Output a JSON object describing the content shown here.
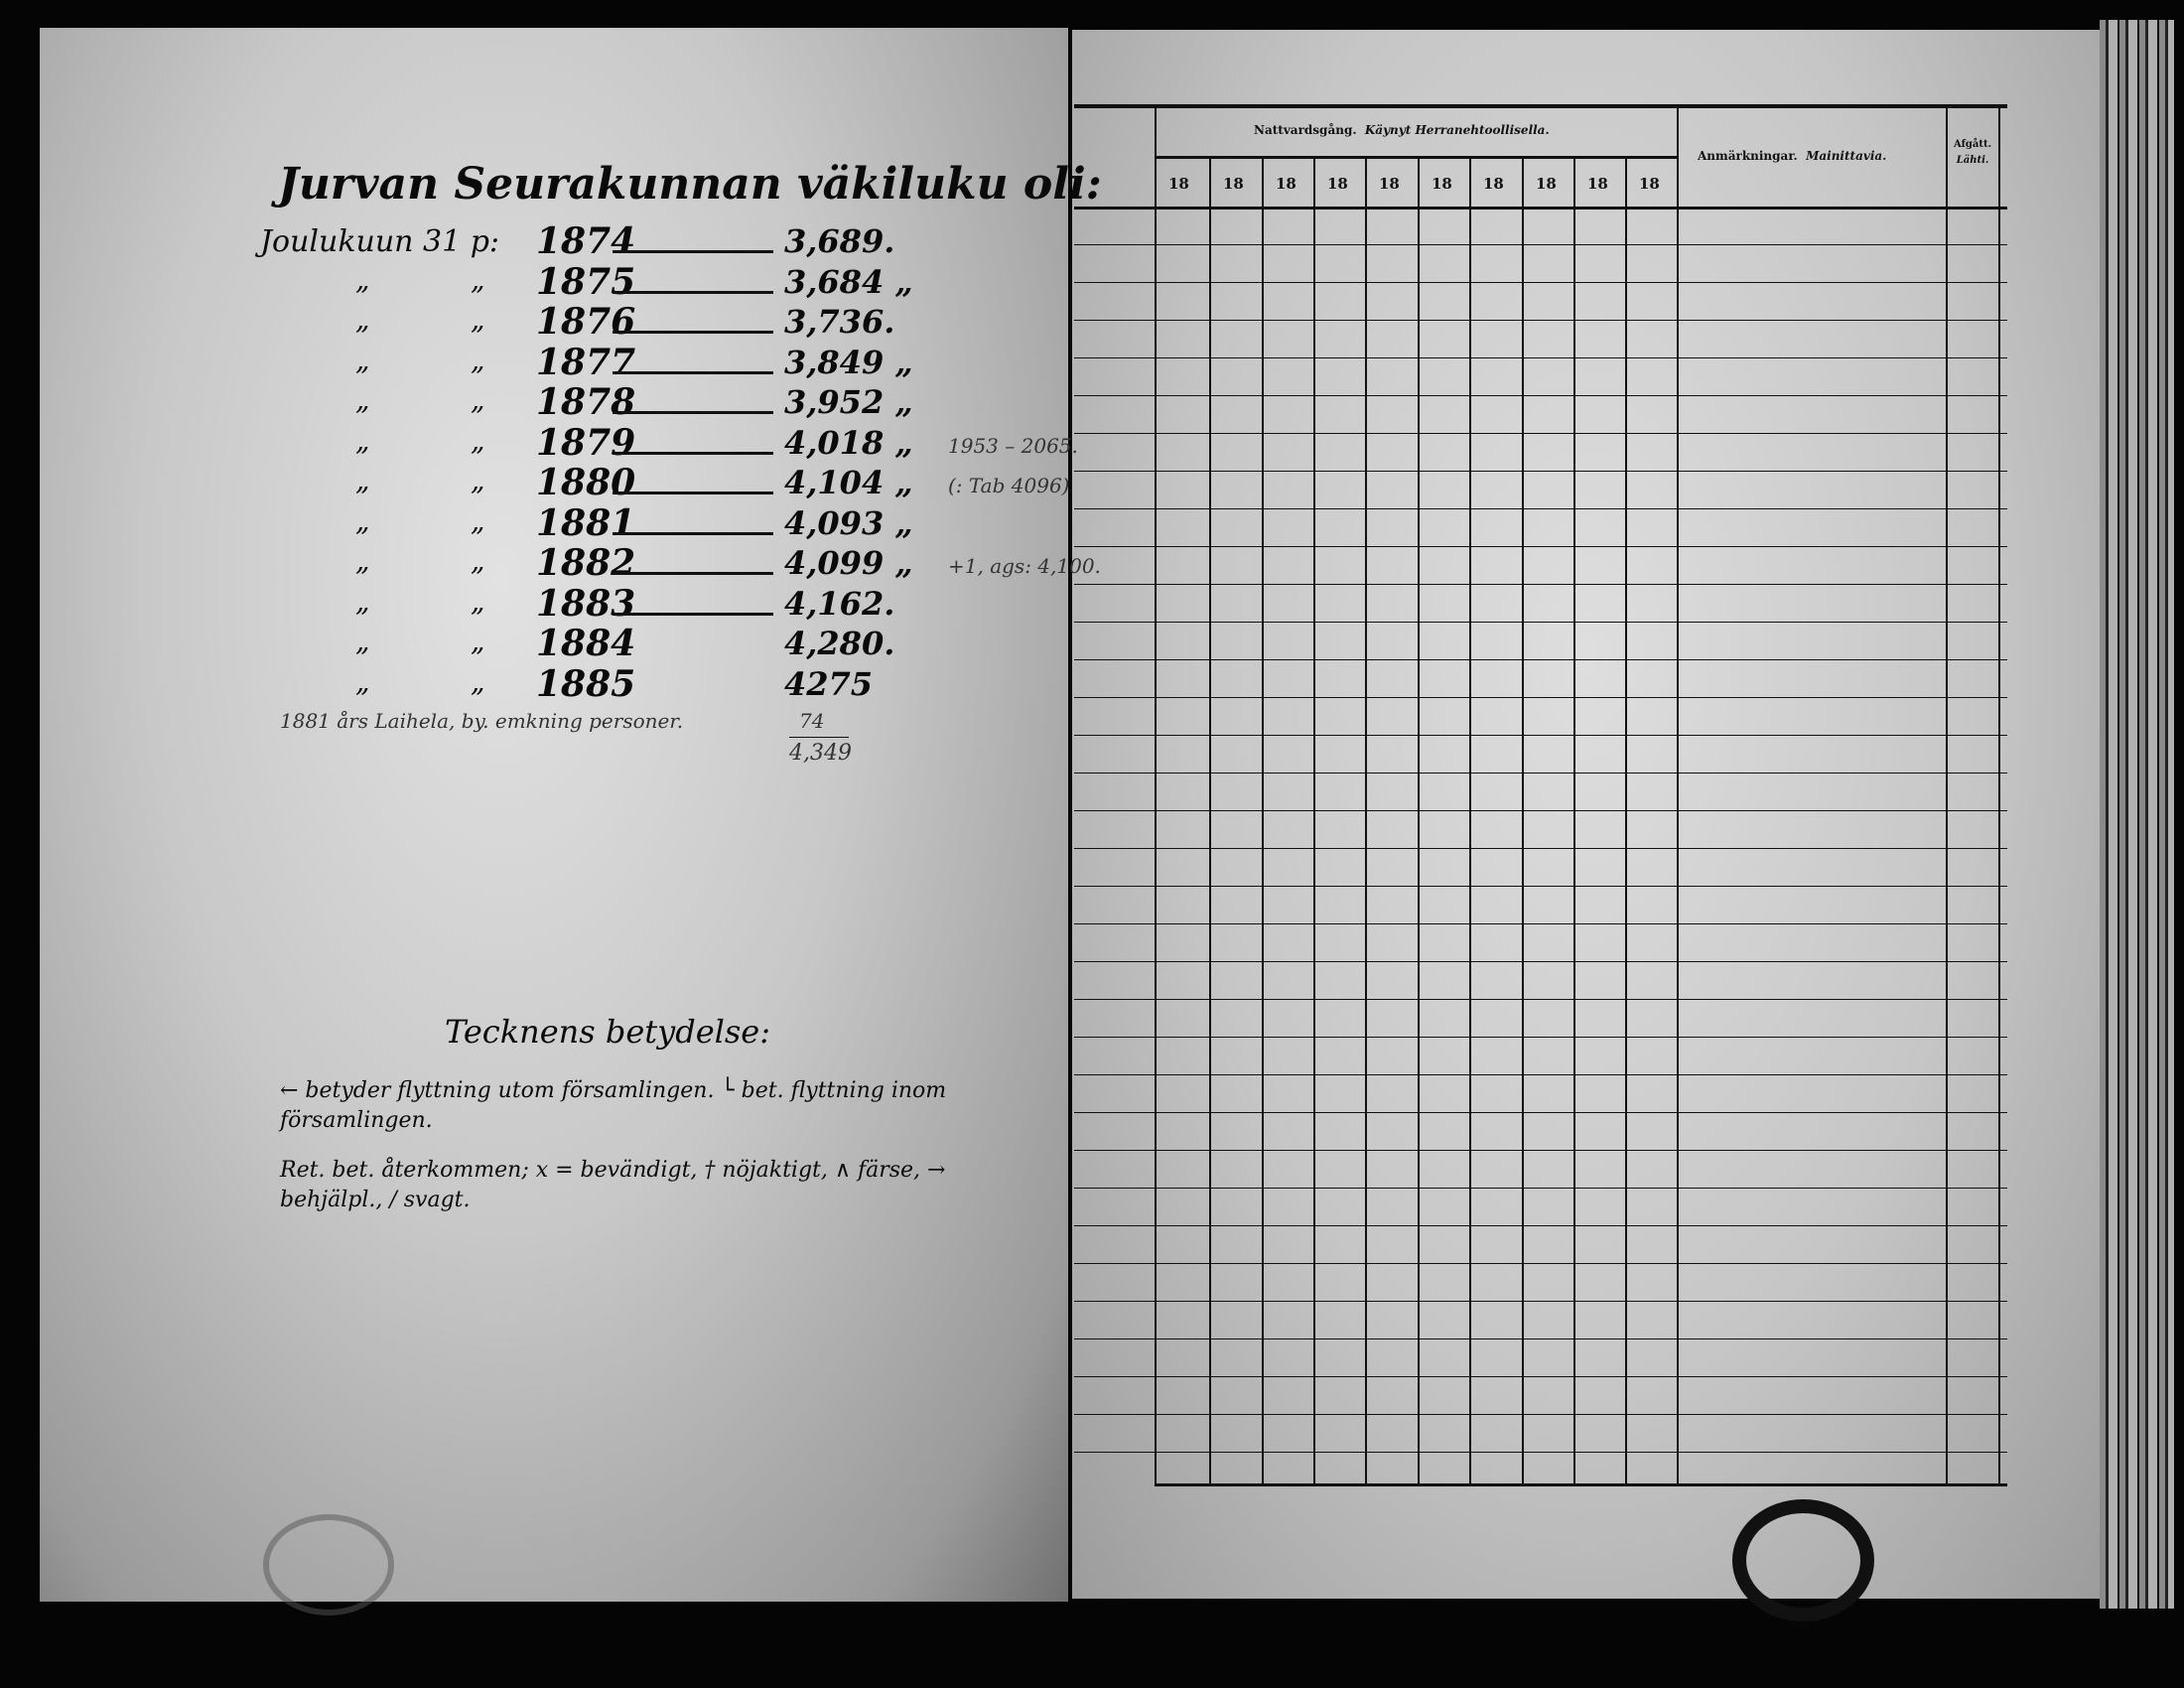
{
  "left_page": {
    "title": "Jurvan Seurakunnan väkiluku oli:",
    "first_prefix": "Joulukuun 31 p:",
    "ditto": "„",
    "rows": [
      {
        "year": "1874",
        "value": "3,689.",
        "note": ""
      },
      {
        "year": "1875",
        "value": "3,684 „",
        "note": ""
      },
      {
        "year": "1876",
        "value": "3,736.",
        "note": ""
      },
      {
        "year": "1877",
        "value": "3,849 „",
        "note": ""
      },
      {
        "year": "1878",
        "value": "3,952 „",
        "note": ""
      },
      {
        "year": "1879",
        "value": "4,018 „",
        "note": "1953 – 2065."
      },
      {
        "year": "1880",
        "value": "4,104 „",
        "note": "(: Tab 4096)"
      },
      {
        "year": "1881",
        "value": "4,093 „",
        "note": ""
      },
      {
        "year": "1882",
        "value": "4,099 „",
        "note": "+1, ags: 4,100."
      },
      {
        "year": "1883",
        "value": "4,162.",
        "note": ""
      },
      {
        "year": "1884",
        "value": "4,280.",
        "note": ""
      },
      {
        "year": "1885",
        "value": "4275",
        "note": ""
      }
    ],
    "side_note": "1881 års Laihela, by. emkning personer.",
    "addition": "74",
    "total": "4,349",
    "legend": {
      "title": "Tecknens betydelse:",
      "line1": "← betyder flyttning utom församlingen.  └ bet. flyttning inom församlingen.",
      "line2": "Ret. bet. återkommen; x = bevändigt, † nöjaktigt, ∧ färse, → behjälpl., / svagt."
    }
  },
  "right_page": {
    "header_group": "Nattvardsgång.",
    "header_group_fi": "Käynyt Herranehtoollisella.",
    "year_columns": [
      "18",
      "18",
      "18",
      "18",
      "18",
      "18",
      "18",
      "18",
      "18",
      "18"
    ],
    "remarks_header": "Anmärkningar.",
    "remarks_header_fi": "Mainittavia.",
    "last_header": "Afgått.",
    "last_header_fi": "Lähti."
  }
}
